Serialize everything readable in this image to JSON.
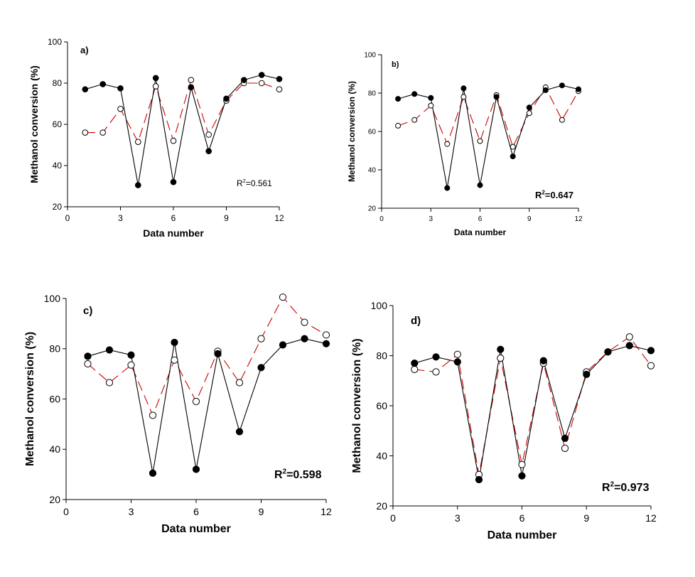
{
  "chart_data": [
    {
      "type": "line",
      "panel_label": "a)",
      "xlabel": "Data number",
      "ylabel": "Methanol conversion (%)",
      "r2_base": "R",
      "r2_exp": "2",
      "r2_value": "=0.561",
      "xlim": [
        0,
        12
      ],
      "ylim": [
        20,
        100
      ],
      "xticks": [
        0,
        3,
        6,
        9,
        12
      ],
      "yticks": [
        20,
        40,
        60,
        80,
        100
      ],
      "x": [
        1,
        2,
        3,
        4,
        5,
        6,
        7,
        8,
        9,
        10,
        11,
        12
      ],
      "series": [
        {
          "values": [
            77,
            79.5,
            77.5,
            30.5,
            82.5,
            32,
            78,
            47,
            72.5,
            81.5,
            84,
            82
          ],
          "color": "#000000",
          "marker": "filled",
          "dash": "solid"
        },
        {
          "values": [
            56,
            56,
            67.5,
            51.5,
            78.5,
            52,
            81.5,
            55,
            71.5,
            80,
            80,
            77
          ],
          "color": "#cc0000",
          "marker": "open",
          "dash": "dashed"
        }
      ]
    },
    {
      "type": "line",
      "panel_label": "b)",
      "xlabel": "Data number",
      "ylabel": "Methanol conversion (%)",
      "r2_base": "R",
      "r2_exp": "2",
      "r2_value": "=0.647",
      "xlim": [
        0,
        12
      ],
      "ylim": [
        20,
        100
      ],
      "xticks": [
        0,
        3,
        6,
        9,
        12
      ],
      "yticks": [
        20,
        40,
        60,
        80,
        100
      ],
      "x": [
        1,
        2,
        3,
        4,
        5,
        6,
        7,
        8,
        9,
        10,
        11,
        12
      ],
      "series": [
        {
          "values": [
            77,
            79.5,
            77.5,
            30.5,
            82.5,
            32,
            78,
            47,
            72.5,
            81.5,
            84,
            82
          ],
          "color": "#000000",
          "marker": "filled",
          "dash": "solid"
        },
        {
          "values": [
            63,
            66,
            73.5,
            53.5,
            78,
            55,
            79,
            52,
            69.5,
            83,
            66,
            81
          ],
          "color": "#cc0000",
          "marker": "open",
          "dash": "dashed"
        }
      ]
    },
    {
      "type": "line",
      "panel_label": "c)",
      "xlabel": "Data number",
      "ylabel": "Methanol conversion (%)",
      "r2_base": "R",
      "r2_exp": "2",
      "r2_value": "=0.598",
      "xlim": [
        0,
        12
      ],
      "ylim": [
        20,
        100
      ],
      "xticks": [
        0,
        3,
        6,
        9,
        12
      ],
      "yticks": [
        20,
        40,
        60,
        80,
        100
      ],
      "x": [
        1,
        2,
        3,
        4,
        5,
        6,
        7,
        8,
        9,
        10,
        11,
        12
      ],
      "series": [
        {
          "values": [
            77,
            79.5,
            77.5,
            30.5,
            82.5,
            32,
            78,
            47,
            72.5,
            81.5,
            84,
            82
          ],
          "color": "#000000",
          "marker": "filled",
          "dash": "solid"
        },
        {
          "values": [
            74,
            66.5,
            73.5,
            53.5,
            75.5,
            59,
            79,
            66.5,
            84,
            100.5,
            90.5,
            85.5
          ],
          "color": "#cc0000",
          "marker": "open",
          "dash": "dashed"
        }
      ]
    },
    {
      "type": "line",
      "panel_label": "d)",
      "xlabel": "Data number",
      "ylabel": "Methanol conversion (%)",
      "r2_base": "R",
      "r2_exp": "2",
      "r2_value": "=0.973",
      "xlim": [
        0,
        12
      ],
      "ylim": [
        20,
        100
      ],
      "xticks": [
        0,
        3,
        6,
        9,
        12
      ],
      "yticks": [
        20,
        40,
        60,
        80,
        100
      ],
      "x": [
        1,
        2,
        3,
        4,
        5,
        6,
        7,
        8,
        9,
        10,
        11,
        12
      ],
      "series": [
        {
          "values": [
            77,
            79.5,
            77.5,
            30.5,
            82.5,
            32,
            78,
            47,
            72.5,
            81.5,
            84,
            82
          ],
          "color": "#000000",
          "marker": "filled",
          "dash": "solid"
        },
        {
          "values": [
            74.5,
            73.5,
            80.5,
            32.5,
            79,
            36.5,
            77,
            43,
            73.5,
            81.5,
            87.5,
            76
          ],
          "color": "#cc0000",
          "marker": "open",
          "dash": "dashed"
        }
      ]
    }
  ]
}
